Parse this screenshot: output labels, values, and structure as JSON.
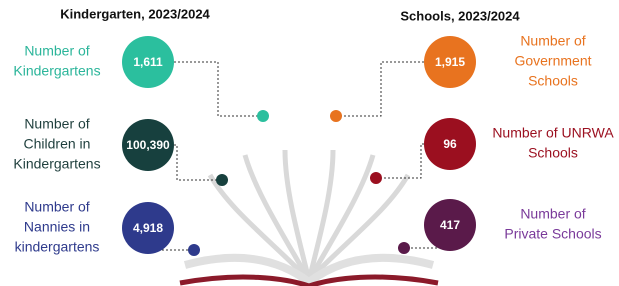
{
  "left": {
    "title": "Kindergarten, 2023/2024",
    "items": [
      {
        "label": [
          "Number of",
          "Kindergartens"
        ],
        "value": "1,611"
      },
      {
        "label": [
          "Number of",
          "Children in",
          "Kindergartens"
        ],
        "value": "100,390"
      },
      {
        "label": [
          "Number of",
          "Nannies in",
          "kindergartens"
        ],
        "value": "4,918"
      }
    ]
  },
  "right": {
    "title": "Schools, 2023/2024",
    "items": [
      {
        "label": [
          "Number of",
          "Government",
          "Schools"
        ],
        "value": "1,915"
      },
      {
        "label": [
          "Number of UNRWA",
          "Schools"
        ],
        "value": "96"
      },
      {
        "label": [
          "Number of",
          "Private Schools"
        ],
        "value": "417"
      }
    ]
  }
}
